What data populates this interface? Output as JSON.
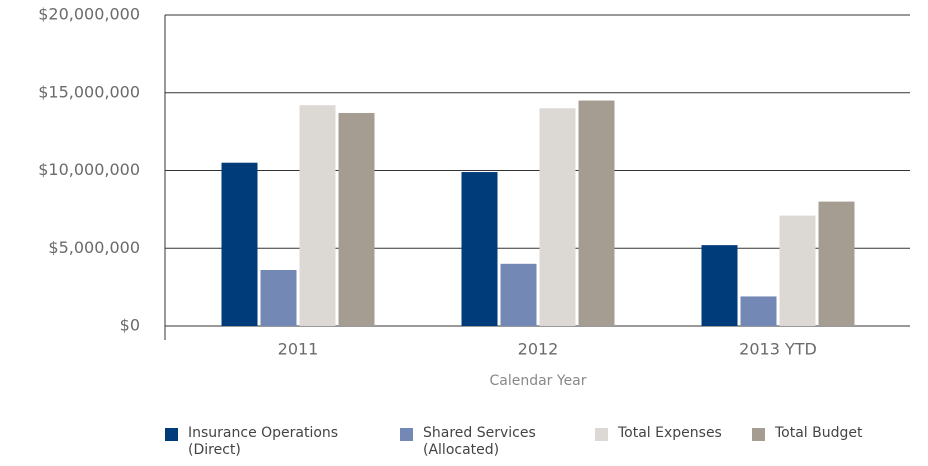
{
  "chart_data": {
    "type": "bar",
    "x_label": "Calendar Year",
    "categories": [
      "2011",
      "2012",
      "2013 YTD"
    ],
    "series": [
      {
        "name": "Insurance Operations (Direct)",
        "color": "#003b7a",
        "values": [
          10500000,
          9900000,
          5200000
        ]
      },
      {
        "name": "Shared Services (Allocated)",
        "color": "#7388b5",
        "values": [
          3600000,
          4000000,
          1900000
        ]
      },
      {
        "name": "Total Expenses",
        "color": "#dcd9d5",
        "values": [
          14200000,
          14000000,
          7100000
        ]
      },
      {
        "name": "Total Budget",
        "color": "#a69d92",
        "values": [
          13700000,
          14500000,
          8000000
        ]
      }
    ],
    "ylim": [
      0,
      20000000
    ],
    "yticks": [
      {
        "value": 0,
        "label": "$0"
      },
      {
        "value": 5000000,
        "label": "$5,000,000"
      },
      {
        "value": 10000000,
        "label": "$10,000,000"
      },
      {
        "value": 15000000,
        "label": "$15,000,000"
      },
      {
        "value": 20000000,
        "label": "$20,000,000"
      }
    ],
    "grid": true
  }
}
